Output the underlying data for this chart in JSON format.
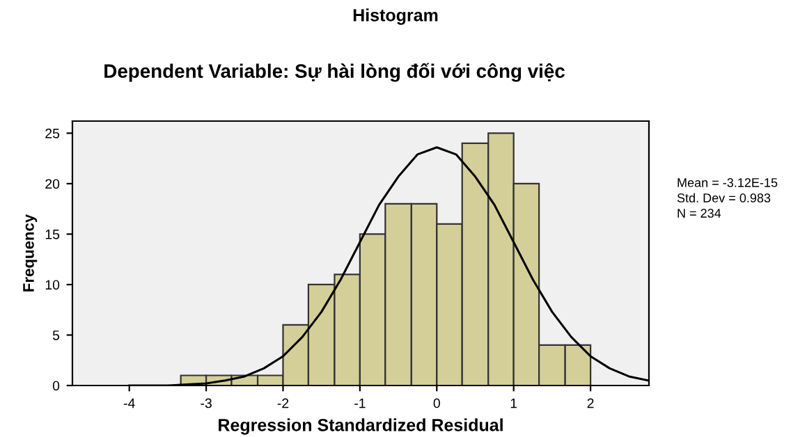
{
  "chart_data": {
    "type": "histogram",
    "title": "Histogram",
    "subtitle": "Dependent Variable: Sự hài lòng đối với công việc",
    "xlabel": "Regression Standardized Residual",
    "ylabel": "Frequency",
    "bins": [
      -3.33,
      -3,
      -2.67,
      -2.33,
      -2,
      -1.67,
      -1.33,
      -1,
      -0.67,
      -0.33,
      0,
      0.33,
      0.67,
      1,
      1.33,
      1.67,
      2
    ],
    "values": [
      1,
      1,
      1,
      1,
      6,
      10,
      11,
      15,
      18,
      18,
      16,
      24,
      25,
      20,
      4,
      4
    ],
    "color": "#d4cf99",
    "series": [
      {
        "type": "line",
        "color": "#000000",
        "x": [
          -4,
          -3.5,
          -3,
          -2.75,
          -2.5,
          -2.25,
          -2,
          -1.75,
          -1.5,
          -1.25,
          -1,
          -0.75,
          -0.5,
          -0.25,
          0,
          0.25,
          0.5,
          0.75,
          1,
          1.25,
          1.5,
          1.75,
          2,
          2.25,
          2.5,
          2.75
        ],
        "values": [
          0,
          0,
          0.2,
          0.5,
          0.9,
          1.7,
          2.9,
          4.8,
          7.3,
          10.5,
          14.2,
          17.9,
          20.7,
          22.9,
          23.6,
          22.9,
          20.7,
          17.9,
          14.2,
          10.5,
          7.3,
          4.8,
          2.9,
          1.7,
          0.9,
          0.5
        ]
      }
    ],
    "xlim": [
      -4.74,
      2.76
    ],
    "ylim": [
      0,
      26.2
    ],
    "xticks": [
      -4,
      -3,
      -2,
      -1,
      0,
      1,
      2
    ],
    "yticks": [
      0,
      5,
      10,
      15,
      20,
      25
    ],
    "grid": false,
    "legend": false,
    "annotations": [
      "Mean = -3.12E-15",
      "Std. Dev = 0.983",
      "N = 234"
    ]
  }
}
